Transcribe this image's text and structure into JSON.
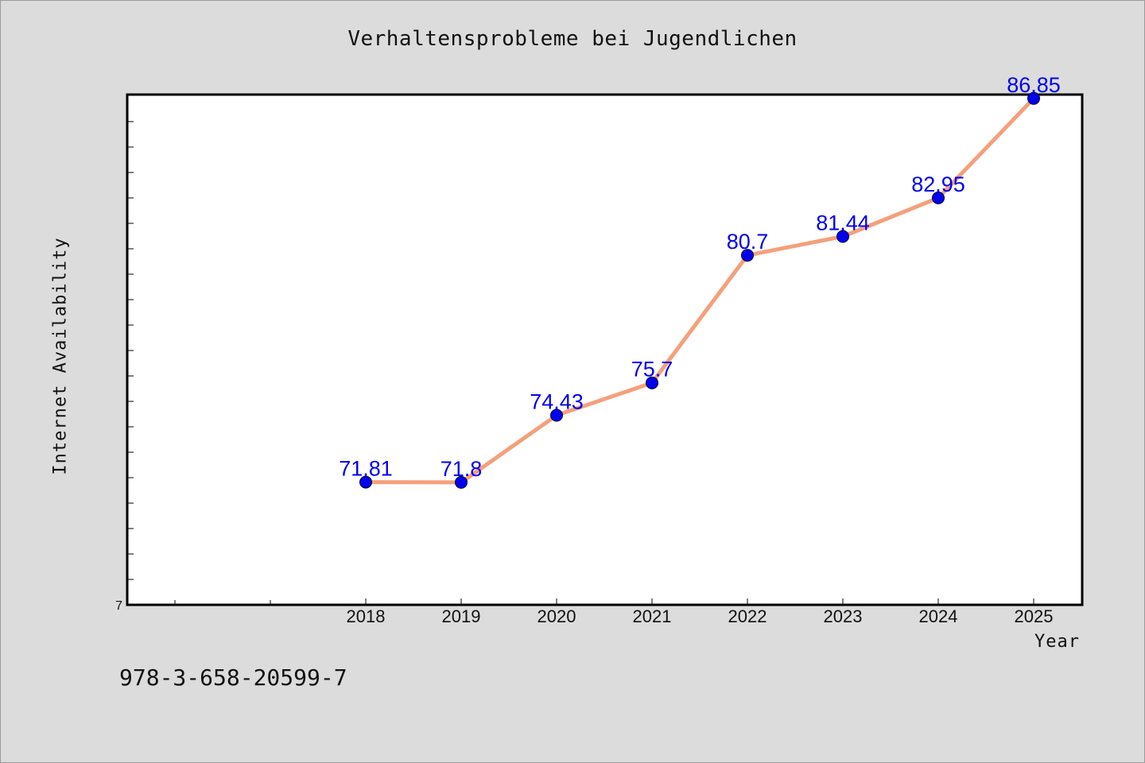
{
  "title": "Verhaltensprobleme bei Jugendlichen",
  "footer_code": "978-3-658-20599-7",
  "colors": {
    "line": "#f4a07c",
    "marker": "#0000ee",
    "label": "#0000ee",
    "background": "#dcdcdc",
    "plot_background": "#ffffff"
  },
  "chart_data": {
    "type": "line",
    "title": "Verhaltensprobleme bei Jugendlichen",
    "xlabel": "Year",
    "ylabel": "Internet Availability",
    "categories": [
      "2018",
      "2019",
      "2020",
      "2021",
      "2022",
      "2023",
      "2024",
      "2025"
    ],
    "series": [
      {
        "values": [
          71.81,
          71.8,
          74.43,
          75.7,
          80.7,
          81.44,
          82.95,
          86.85
        ],
        "labels": [
          "71.81",
          "71.8",
          "74.43",
          "75.7",
          "80.7",
          "81.44",
          "82.95",
          "86.85"
        ]
      }
    ],
    "ytick_label": "7",
    "ylim": [
      67,
      87
    ],
    "grid": false,
    "legend": "none"
  }
}
